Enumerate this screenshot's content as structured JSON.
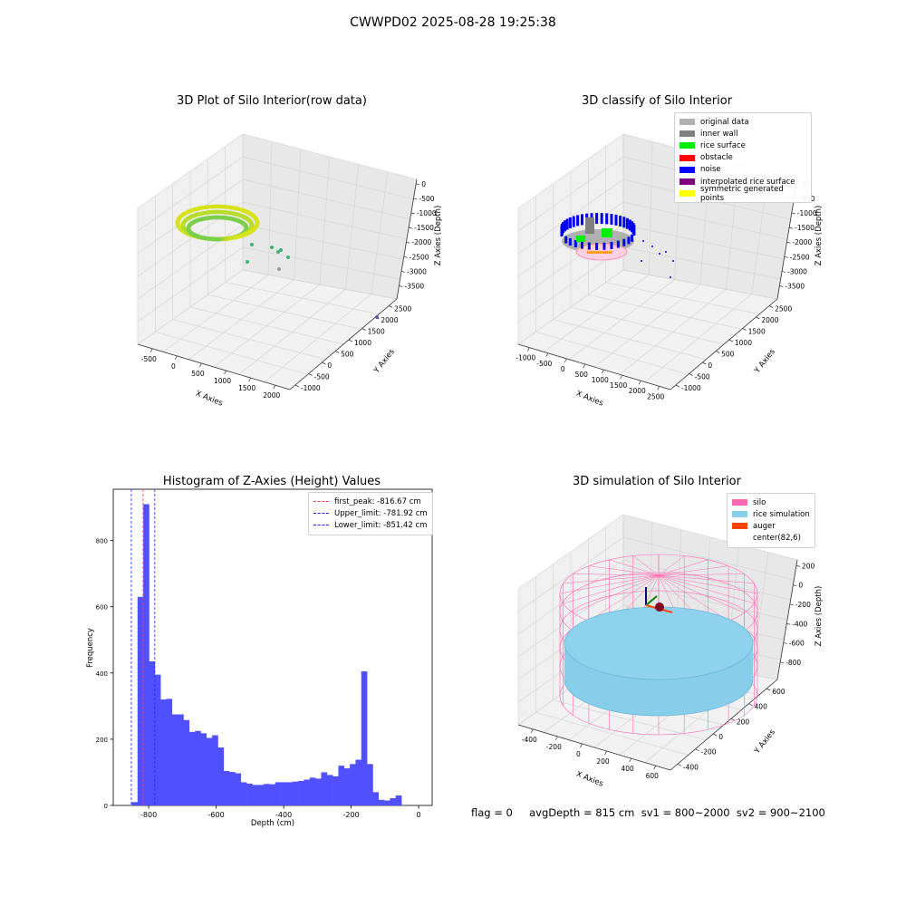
{
  "suptitle": "CWWPD02 2025-08-28 19:25:38",
  "colors": {
    "hist_bar": "#5050ff",
    "first_peak": "#ff4040",
    "limit_line": "#2020ff",
    "pane": "#f2f2f2",
    "grid": "#d6d6d6",
    "silo": "#ff69b4",
    "rice": "#87ceeb",
    "auger": "#ff4500"
  },
  "panel1": {
    "title": "3D Plot of Silo Interior(row data)",
    "xlabel": "X Axies",
    "ylabel": "Y Axies",
    "zlabel": "Z Axies (Depth)",
    "xticks": [
      "-500",
      "0",
      "500",
      "1000",
      "1500",
      "2000"
    ],
    "yticks": [
      "-1000",
      "-500",
      "0",
      "500",
      "1000",
      "1500",
      "2000",
      "2500"
    ],
    "zticks": [
      "0",
      "-500",
      "-1000",
      "-1500",
      "-2000",
      "-2500",
      "-3000",
      "-3500"
    ]
  },
  "panel2": {
    "title": "3D classify of Silo Interior",
    "xlabel": "X Axies",
    "ylabel": "Y Axies",
    "zlabel": "Z Axies (Depth)",
    "xticks": [
      "-1000",
      "-500",
      "0",
      "500",
      "1000",
      "1500",
      "2000",
      "2500"
    ],
    "yticks": [
      "-1000",
      "-500",
      "0",
      "500",
      "1000",
      "1500",
      "2000",
      "2500"
    ],
    "zticks": [
      "0",
      "-500",
      "-1000",
      "-1500",
      "-2000",
      "-2500",
      "-3000",
      "-3500"
    ],
    "legend": [
      {
        "label": "original data",
        "color": "#b0b0b0"
      },
      {
        "label": "inner wall",
        "color": "#808080"
      },
      {
        "label": "rice surface",
        "color": "#00ee00"
      },
      {
        "label": "obstacle",
        "color": "#ff0000"
      },
      {
        "label": "noise",
        "color": "#0000ff"
      },
      {
        "label": "interpolated rice surface",
        "color": "#800080"
      },
      {
        "label": "symmetric generated points",
        "color": "#ffff00"
      }
    ]
  },
  "panel4": {
    "title": "3D simulation of Silo Interior",
    "xlabel": "X Axies",
    "ylabel": "Y Axies",
    "zlabel": "Z Axies (Depth)",
    "xticks": [
      "-400",
      "-200",
      "0",
      "200",
      "400",
      "600"
    ],
    "yticks": [
      "-400",
      "-200",
      "0",
      "200",
      "400",
      "600"
    ],
    "zticks": [
      "200",
      "0",
      "-200",
      "-400",
      "-600",
      "-800"
    ],
    "legend": [
      {
        "label": "silo",
        "color": "#ff69b4"
      },
      {
        "label": "rice simulation",
        "color": "#87ceeb"
      },
      {
        "label": "auger",
        "color": "#ff4500"
      },
      {
        "label": "center(82,6)",
        "color": ""
      }
    ]
  },
  "status": {
    "text": "flag = 0     avgDepth = 815 cm  sv1 = 800~2000  sv2 = 900~2100"
  },
  "chart_data": {
    "type": "bar",
    "title": "Histogram of Z-Axies (Height) Values",
    "xlabel": "Depth (cm)",
    "ylabel": "Frequency",
    "xlim": [
      -905,
      40
    ],
    "ylim": [
      0,
      955
    ],
    "xticks": [
      -800,
      -600,
      -400,
      -200,
      0
    ],
    "yticks": [
      0,
      200,
      400,
      600,
      800
    ],
    "bin_start": -850,
    "bin_width": 17,
    "values": [
      10,
      630,
      910,
      435,
      395,
      320,
      322,
      275,
      275,
      258,
      222,
      225,
      218,
      204,
      212,
      175,
      104,
      101,
      97,
      70,
      66,
      62,
      62,
      65,
      64,
      70,
      70,
      70,
      72,
      74,
      78,
      84,
      81,
      100,
      92,
      88,
      120,
      112,
      125,
      138,
      405,
      125,
      40,
      17,
      15,
      22,
      30
    ],
    "vlines": [
      {
        "name": "first_peak: -816.67 cm",
        "x": -816.67,
        "color": "#ff4040"
      },
      {
        "name": "Upper_limit: -781.92 cm",
        "x": -781.92,
        "color": "#2020ff"
      },
      {
        "name": "Lower_limit: -851.42 cm",
        "x": -851.42,
        "color": "#2020ff"
      }
    ]
  }
}
